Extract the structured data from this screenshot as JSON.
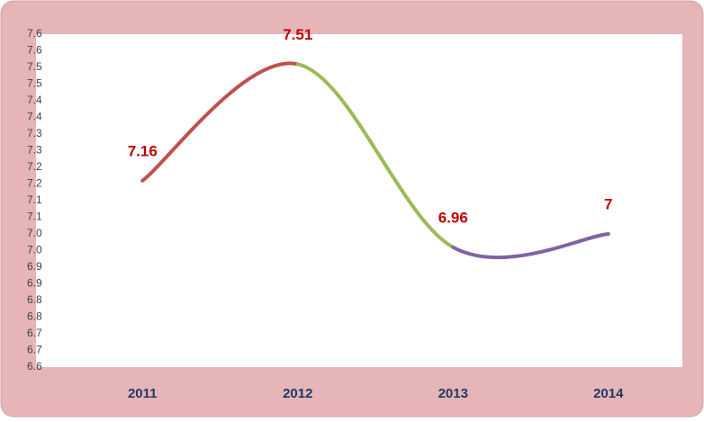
{
  "chart_data": {
    "type": "line",
    "categories": [
      "2011",
      "2012",
      "2013",
      "2014"
    ],
    "series": [
      {
        "values": [
          7.16,
          7.51,
          6.96,
          7
        ],
        "segment_colors": [
          "#c0504d",
          "#9bbb59",
          "#8064a2"
        ]
      }
    ],
    "label_color": "#c00000",
    "smooth": true,
    "ylim": [
      6.6,
      7.6
    ],
    "yticks": [
      6.6,
      {
        "value": 6.65,
        "label": "6.7"
      },
      6.7,
      {
        "value": 6.75,
        "label": "6.8"
      },
      6.8,
      {
        "value": 6.85,
        "label": "6.9"
      },
      6.9,
      {
        "value": 6.95,
        "label": "7.0"
      },
      {
        "value": 7,
        "label": "7.0"
      },
      {
        "value": 7.05,
        "label": "7.1"
      },
      7.1,
      {
        "value": 7.15,
        "label": "7.2"
      },
      7.2,
      {
        "value": 7.25,
        "label": "7.3"
      },
      7.3,
      {
        "value": 7.35,
        "label": "7.4"
      },
      7.4,
      {
        "value": 7.45,
        "label": "7.5"
      },
      7.5,
      {
        "value": 7.55,
        "label": "7.6"
      },
      7.6
    ],
    "grid": false
  }
}
